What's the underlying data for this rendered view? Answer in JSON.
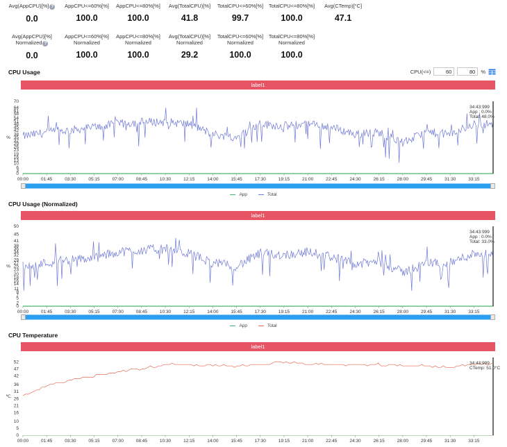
{
  "metrics_row1": [
    {
      "label": "Avg(AppCPU)[%]",
      "value": "0.0",
      "help": true
    },
    {
      "label": "AppCPU<=60%[%]",
      "value": "100.0"
    },
    {
      "label": "AppCPU<=80%[%]",
      "value": "100.0"
    },
    {
      "label": "Avg(TotalCPU)[%]",
      "value": "41.8"
    },
    {
      "label": "TotalCPU<=60%[%]",
      "value": "99.7"
    },
    {
      "label": "TotalCPU<=80%[%]",
      "value": "100.0"
    },
    {
      "label": "Avg(CTemp)[°C]",
      "value": "47.1"
    }
  ],
  "metrics_row2": [
    {
      "label": "Avg(AppCPU)[%]",
      "sub": "Normalized",
      "value": "0.0",
      "help": true
    },
    {
      "label": "AppCPU<=60%[%]",
      "sub": "Normalized",
      "value": "100.0"
    },
    {
      "label": "AppCPU<=80%[%]",
      "sub": "Normalized",
      "value": "100.0"
    },
    {
      "label": "Avg(TotalCPU)[%]",
      "sub": "Normalized",
      "value": "29.2"
    },
    {
      "label": "TotalCPU<=60%[%]",
      "sub": "Normalized",
      "value": "100.0"
    },
    {
      "label": "TotalCPU<=80%[%]",
      "sub": "Normalized",
      "value": "100.0"
    }
  ],
  "cpu_filter": {
    "label": "CPU(<=)",
    "value1": "60",
    "value2": "80",
    "unit": "%"
  },
  "charts": {
    "usage": {
      "title": "CPU Usage",
      "label_bar": "label1",
      "ylabel": "%",
      "legend": [
        "App",
        "Total"
      ],
      "tooltip": [
        "34:43:999",
        "App : 0.0%",
        "Total: 48.0%"
      ]
    },
    "normalized": {
      "title": "CPU Usage (Normalized)",
      "label_bar": "label1",
      "ylabel": "%",
      "legend": [
        "App",
        "Total"
      ],
      "tooltip": [
        "34:43:999",
        "App : 0.0%",
        "Total: 33.0%"
      ]
    },
    "temp": {
      "title": "CPU Temperature",
      "label_bar": "label1",
      "ylabel": "℃",
      "tooltip": [
        "34:43:999",
        "CTemp: 51.0°C"
      ]
    }
  },
  "colors": {
    "total": "#6e78d6",
    "app": "#3fb86b",
    "temp": "#e86a55",
    "label_bar": "#e75565",
    "slider": "#2b9ef0"
  },
  "chart_data": [
    {
      "type": "line",
      "title": "CPU Usage",
      "xlabel": "",
      "ylabel": "%",
      "x_ticks": [
        "00:00",
        "01:45",
        "03:30",
        "05:15",
        "07:00",
        "08:45",
        "10:30",
        "12:15",
        "14:00",
        "15:45",
        "17:30",
        "19:15",
        "21:00",
        "22:45",
        "24:30",
        "26:15",
        "28:00",
        "29:45",
        "31:30",
        "33:15"
      ],
      "y_ticks": [
        0,
        3,
        6,
        10,
        13,
        16,
        19,
        23,
        26,
        29,
        32,
        35,
        38,
        42,
        45,
        48,
        51,
        54,
        58,
        61,
        64,
        70
      ],
      "ylim": [
        0,
        70
      ],
      "grid": false,
      "legend": "bottom",
      "series": [
        {
          "name": "App",
          "x": [
            "00:00",
            "33:15"
          ],
          "values": [
            0.0,
            0.0
          ]
        },
        {
          "name": "Total",
          "x": [
            "00:00",
            "01:45",
            "03:30",
            "05:15",
            "07:00",
            "08:45",
            "10:30",
            "12:15",
            "14:00",
            "15:45",
            "17:30",
            "19:15",
            "21:00",
            "22:45",
            "24:30",
            "26:15",
            "28:00",
            "29:45",
            "31:30",
            "33:15",
            "34:43"
          ],
          "values": [
            36,
            40,
            42,
            45,
            48,
            50,
            50,
            48,
            38,
            35,
            48,
            46,
            48,
            45,
            38,
            40,
            30,
            40,
            38,
            48,
            48
          ]
        }
      ]
    },
    {
      "type": "line",
      "title": "CPU Usage (Normalized)",
      "xlabel": "",
      "ylabel": "%",
      "x_ticks": [
        "00:00",
        "01:45",
        "03:30",
        "05:15",
        "07:00",
        "08:45",
        "10:30",
        "12:15",
        "14:00",
        "15:45",
        "17:30",
        "19:15",
        "21:00",
        "22:45",
        "24:30",
        "26:15",
        "28:00",
        "29:45",
        "31:30",
        "33:15"
      ],
      "y_ticks": [
        0,
        2,
        5,
        7,
        9,
        11,
        14,
        16,
        18,
        20,
        23,
        25,
        27,
        29,
        32,
        34,
        36,
        38,
        41,
        45,
        50
      ],
      "ylim": [
        0,
        50
      ],
      "grid": false,
      "legend": "bottom",
      "series": [
        {
          "name": "App",
          "x": [
            "00:00",
            "33:15"
          ],
          "values": [
            0.0,
            0.0
          ]
        },
        {
          "name": "Total",
          "x": [
            "00:00",
            "01:45",
            "03:30",
            "05:15",
            "07:00",
            "08:45",
            "10:30",
            "12:15",
            "14:00",
            "15:45",
            "17:30",
            "19:15",
            "21:00",
            "22:45",
            "24:30",
            "26:15",
            "28:00",
            "29:45",
            "31:30",
            "33:15",
            "34:43"
          ],
          "values": [
            25,
            27,
            29,
            30,
            34,
            35,
            36,
            33,
            27,
            25,
            33,
            32,
            34,
            31,
            26,
            28,
            21,
            27,
            27,
            33,
            33
          ]
        }
      ]
    },
    {
      "type": "line",
      "title": "CPU Temperature",
      "xlabel": "",
      "ylabel": "℃",
      "x_ticks": [
        "00:00",
        "01:45",
        "03:30",
        "05:15",
        "07:00",
        "08:45",
        "10:30",
        "12:15",
        "14:00",
        "15:45",
        "17:30",
        "19:15",
        "21:00",
        "22:45",
        "24:30",
        "26:15",
        "28:00",
        "29:45",
        "31:30",
        "33:15"
      ],
      "y_ticks": [
        0,
        5,
        10,
        16,
        21,
        26,
        31,
        36,
        42,
        47,
        52
      ],
      "ylim": [
        0,
        55
      ],
      "grid": false,
      "series": [
        {
          "name": "CTemp",
          "x": [
            "00:00",
            "01:45",
            "03:30",
            "05:15",
            "07:00",
            "08:45",
            "10:30",
            "12:15",
            "14:00",
            "15:45",
            "17:30",
            "19:15",
            "21:00",
            "22:45",
            "24:30",
            "26:15",
            "28:00",
            "29:45",
            "31:30",
            "33:15",
            "34:43"
          ],
          "values": [
            28,
            35,
            39,
            42,
            45,
            47,
            50,
            50,
            49,
            49,
            50,
            52,
            50,
            50,
            50,
            50,
            49,
            49,
            48,
            50,
            51
          ]
        }
      ]
    }
  ]
}
